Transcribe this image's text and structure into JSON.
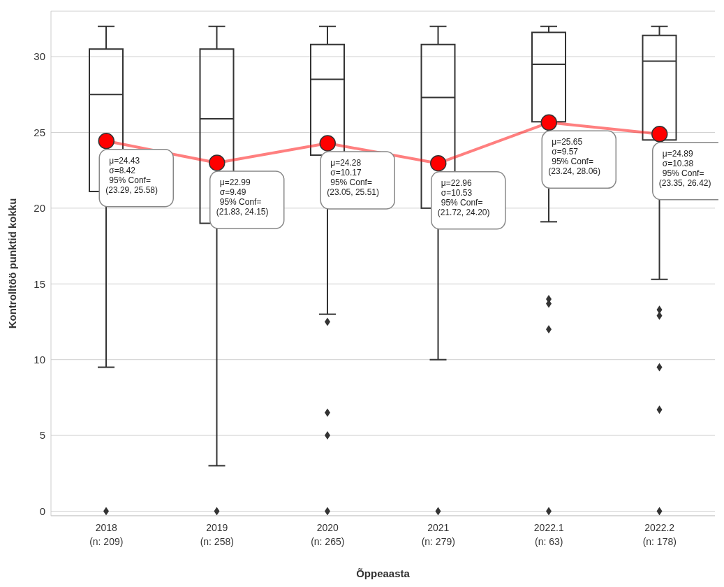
{
  "chart_data": {
    "type": "box",
    "xlabel": "Õppeaasta",
    "ylabel": "Kontrolltöö punktid kokku",
    "categories": [
      "2018\n(n: 209)",
      "2019\n(n: 258)",
      "2020\n(n: 265)",
      "2021\n(n: 279)",
      "2022.1\n(n: 63)",
      "2022.2\n(n: 178)"
    ],
    "series": [
      {
        "color": "#333333",
        "boxes": [
          {
            "low": 9.5,
            "q1": 21.1,
            "median": 27.5,
            "q3": 30.5,
            "high": 32,
            "outliers": [
              0
            ]
          },
          {
            "low": 3,
            "q1": 19,
            "median": 25.9,
            "q3": 30.5,
            "high": 32,
            "outliers": [
              0
            ]
          },
          {
            "low": 13,
            "q1": 23.5,
            "median": 28.5,
            "q3": 30.8,
            "high": 32,
            "outliers": [
              12.5,
              6.5,
              5,
              0
            ]
          },
          {
            "low": 10,
            "q1": 20,
            "median": 27.3,
            "q3": 30.8,
            "high": 32,
            "outliers": [
              0
            ]
          },
          {
            "low": 19.1,
            "q1": 25.7,
            "median": 29.5,
            "q3": 31.6,
            "high": 32,
            "outliers": [
              14,
              13.7,
              12,
              0
            ]
          },
          {
            "low": 15.3,
            "q1": 24.5,
            "median": 29.7,
            "q3": 31.4,
            "high": 32,
            "outliers": [
              13.3,
              12.9,
              9.5,
              6.7,
              0
            ]
          }
        ]
      },
      {
        "type": "line",
        "color": "#ff0000",
        "values": [
          24.43,
          22.99,
          24.28,
          22.96,
          25.65,
          24.89
        ]
      }
    ],
    "annotations": [
      {
        "text": "μ=24.43\nσ=8.42\n95% Conf=\n(23.29, 25.58)",
        "x": "2018\n(n: 209)",
        "y": 24.43
      },
      {
        "text": "μ=22.99\nσ=9.49\n95% Conf=\n(21.83, 24.15)",
        "x": "2019\n(n: 258)",
        "y": 22.99
      },
      {
        "text": "μ=24.28\nσ=10.17\n95% Conf=\n(23.05, 25.51)",
        "x": "2020\n(n: 265)",
        "y": 24.28
      },
      {
        "text": "μ=22.96\nσ=10.53\n95% Conf=\n(21.72, 24.20)",
        "x": "2021\n(n: 279)",
        "y": 22.96
      },
      {
        "text": "μ=25.65\nσ=9.57\n95% Conf=\n(23.24, 28.06)",
        "x": "2022.1\n(n: 63)",
        "y": 25.65
      },
      {
        "text": "μ=24.89\nσ=10.38\n95% Conf=\n(23.35, 26.42)",
        "x": "2022.2\n(n: 178)",
        "y": 24.89
      }
    ],
    "ylim": [
      -0.3,
      33
    ],
    "yticks": [
      0,
      5,
      10,
      15,
      20,
      25,
      30
    ],
    "grid": "y",
    "marker": "circle",
    "line_style": "solid"
  }
}
